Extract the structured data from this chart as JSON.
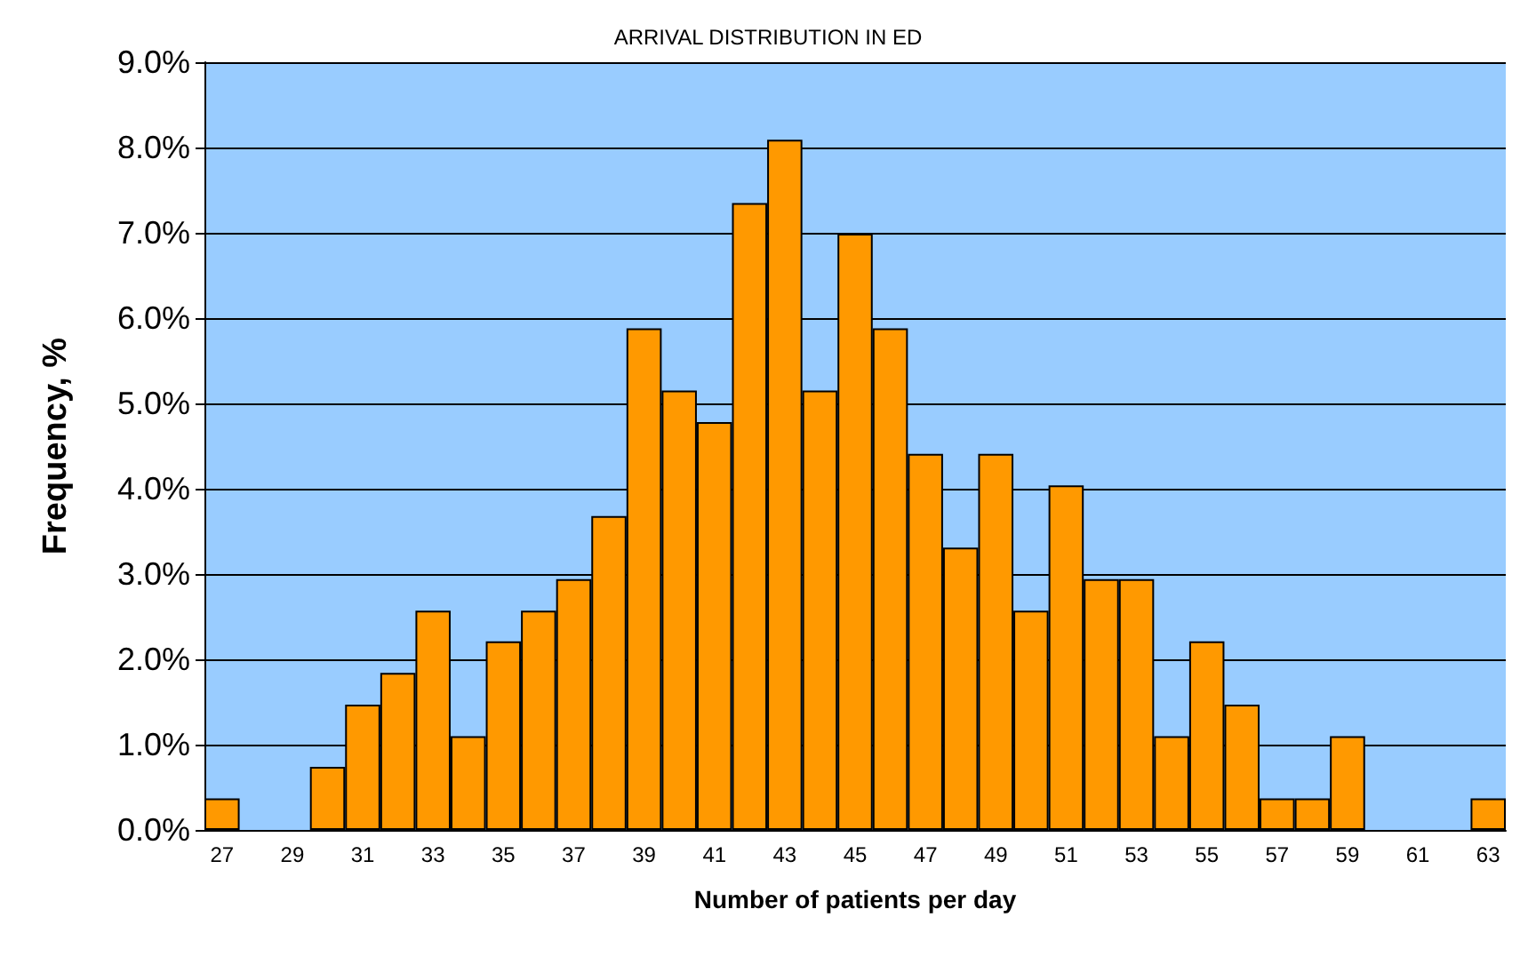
{
  "chart_data": {
    "type": "bar",
    "title": "ARRIVAL DISTRIBUTION IN ED",
    "xlabel": "Number of patients per day",
    "ylabel": "Frequency, %",
    "categories": [
      "27",
      null,
      "29",
      null,
      "31",
      null,
      "33",
      null,
      "35",
      null,
      "37",
      null,
      "39",
      null,
      "41",
      null,
      "43",
      null,
      "45",
      null,
      "47",
      null,
      "49",
      null,
      "51",
      null,
      "53",
      null,
      "55",
      null,
      "57",
      null,
      "59",
      null,
      "61",
      null,
      "63"
    ],
    "series": [
      {
        "color": "#ff9900",
        "values": [
          0.37,
          0,
          0,
          0.74,
          1.47,
          1.84,
          2.57,
          1.1,
          2.21,
          2.57,
          2.94,
          3.68,
          5.88,
          5.15,
          4.78,
          7.35,
          8.09,
          5.15,
          6.99,
          5.88,
          4.41,
          3.31,
          4.41,
          2.57,
          4.04,
          2.94,
          2.94,
          1.1,
          2.21,
          1.47,
          0.37,
          0.37,
          1.1,
          0,
          0,
          0,
          0.37
        ]
      }
    ],
    "ylim": [
      0,
      9
    ],
    "yticks": [
      {
        "value": 0,
        "label": "0.0%"
      },
      {
        "value": 1,
        "label": "1.0%"
      },
      {
        "value": 2,
        "label": "2.0%"
      },
      {
        "value": 3,
        "label": "3.0%"
      },
      {
        "value": 4,
        "label": "4.0%"
      },
      {
        "value": 5,
        "label": "5.0%"
      },
      {
        "value": 6,
        "label": "6.0%"
      },
      {
        "value": 7,
        "label": "7.0%"
      },
      {
        "value": 8,
        "label": "8.0%"
      },
      {
        "value": 9,
        "label": "9.0%"
      }
    ],
    "grid": "y"
  }
}
